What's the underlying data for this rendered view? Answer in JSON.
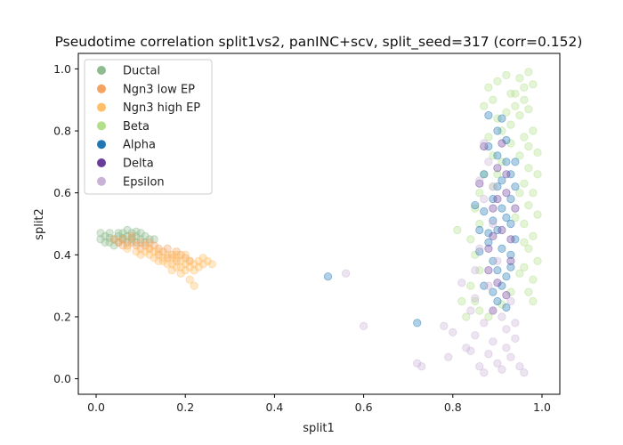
{
  "chart_data": {
    "type": "scatter",
    "title": "Pseudotime correlation split1vs2, panINC+scv, split_seed=317 (corr=0.152)",
    "xlabel": "split1",
    "ylabel": "split2",
    "xlim": [
      -0.04,
      1.04
    ],
    "ylim": [
      -0.05,
      1.05
    ],
    "xticks": [
      "0.0",
      "0.2",
      "0.4",
      "0.6",
      "0.8",
      "1.0"
    ],
    "yticks": [
      "0.0",
      "0.2",
      "0.4",
      "0.6",
      "0.8",
      "1.0"
    ],
    "legend_position": "top-left",
    "point_alpha": 0.35,
    "series": [
      {
        "name": "Ductal",
        "color": "#8fbc8f",
        "points": [
          [
            0.01,
            0.45
          ],
          [
            0.02,
            0.46
          ],
          [
            0.03,
            0.44
          ],
          [
            0.03,
            0.47
          ],
          [
            0.04,
            0.45
          ],
          [
            0.05,
            0.46
          ],
          [
            0.05,
            0.44
          ],
          [
            0.06,
            0.47
          ],
          [
            0.06,
            0.45
          ],
          [
            0.07,
            0.46
          ],
          [
            0.07,
            0.44
          ],
          [
            0.08,
            0.45
          ],
          [
            0.08,
            0.47
          ],
          [
            0.09,
            0.46
          ],
          [
            0.09,
            0.44
          ],
          [
            0.1,
            0.45
          ],
          [
            0.11,
            0.46
          ],
          [
            0.12,
            0.45
          ],
          [
            0.04,
            0.43
          ],
          [
            0.02,
            0.44
          ],
          [
            0.05,
            0.47
          ],
          [
            0.07,
            0.48
          ],
          [
            0.1,
            0.47
          ],
          [
            0.03,
            0.455
          ],
          [
            0.06,
            0.455
          ],
          [
            0.08,
            0.455
          ],
          [
            0.13,
            0.45
          ],
          [
            0.01,
            0.47
          ],
          [
            0.11,
            0.44
          ],
          [
            0.09,
            0.475
          ]
        ]
      },
      {
        "name": "Ngn3 low EP",
        "color": "#f4a460",
        "points": [
          [
            0.04,
            0.45
          ],
          [
            0.05,
            0.44
          ],
          [
            0.06,
            0.45
          ],
          [
            0.07,
            0.43
          ],
          [
            0.08,
            0.44
          ],
          [
            0.09,
            0.43
          ],
          [
            0.1,
            0.44
          ],
          [
            0.11,
            0.43
          ],
          [
            0.12,
            0.42
          ],
          [
            0.13,
            0.43
          ],
          [
            0.14,
            0.42
          ],
          [
            0.15,
            0.41
          ],
          [
            0.16,
            0.42
          ],
          [
            0.17,
            0.4
          ],
          [
            0.18,
            0.41
          ],
          [
            0.19,
            0.4
          ],
          [
            0.2,
            0.39
          ],
          [
            0.08,
            0.46
          ],
          [
            0.1,
            0.42
          ],
          [
            0.12,
            0.44
          ],
          [
            0.14,
            0.4
          ],
          [
            0.16,
            0.39
          ],
          [
            0.18,
            0.38
          ],
          [
            0.21,
            0.38
          ],
          [
            0.06,
            0.43
          ]
        ]
      },
      {
        "name": "Ngn3 high EP",
        "color": "#ffbf69",
        "points": [
          [
            0.07,
            0.42
          ],
          [
            0.09,
            0.41
          ],
          [
            0.1,
            0.4
          ],
          [
            0.11,
            0.41
          ],
          [
            0.12,
            0.4
          ],
          [
            0.13,
            0.39
          ],
          [
            0.14,
            0.41
          ],
          [
            0.15,
            0.39
          ],
          [
            0.15,
            0.38
          ],
          [
            0.16,
            0.4
          ],
          [
            0.16,
            0.37
          ],
          [
            0.17,
            0.39
          ],
          [
            0.17,
            0.37
          ],
          [
            0.18,
            0.39
          ],
          [
            0.18,
            0.36
          ],
          [
            0.19,
            0.38
          ],
          [
            0.19,
            0.36
          ],
          [
            0.2,
            0.37
          ],
          [
            0.2,
            0.35
          ],
          [
            0.21,
            0.38
          ],
          [
            0.21,
            0.36
          ],
          [
            0.22,
            0.37
          ],
          [
            0.22,
            0.35
          ],
          [
            0.23,
            0.38
          ],
          [
            0.23,
            0.36
          ],
          [
            0.24,
            0.37
          ],
          [
            0.25,
            0.38
          ],
          [
            0.26,
            0.37
          ],
          [
            0.21,
            0.32
          ],
          [
            0.22,
            0.3
          ],
          [
            0.12,
            0.42
          ],
          [
            0.14,
            0.38
          ],
          [
            0.19,
            0.34
          ],
          [
            0.2,
            0.4
          ],
          [
            0.17,
            0.35
          ],
          [
            0.24,
            0.39
          ],
          [
            0.13,
            0.41
          ],
          [
            0.18,
            0.4
          ]
        ]
      },
      {
        "name": "Beta",
        "color": "#b2df8a",
        "points": [
          [
            0.88,
            0.94
          ],
          [
            0.9,
            0.96
          ],
          [
            0.92,
            0.98
          ],
          [
            0.93,
            0.92
          ],
          [
            0.95,
            0.97
          ],
          [
            0.96,
            0.94
          ],
          [
            0.97,
            0.99
          ],
          [
            0.98,
            0.95
          ],
          [
            0.96,
            0.9
          ],
          [
            0.94,
            0.88
          ],
          [
            0.92,
            0.86
          ],
          [
            0.95,
            0.85
          ],
          [
            0.97,
            0.87
          ],
          [
            0.98,
            0.8
          ],
          [
            0.96,
            0.78
          ],
          [
            0.93,
            0.82
          ],
          [
            0.91,
            0.8
          ],
          [
            0.97,
            0.75
          ],
          [
            0.99,
            0.73
          ],
          [
            0.95,
            0.72
          ],
          [
            0.97,
            0.68
          ],
          [
            0.99,
            0.66
          ],
          [
            0.96,
            0.63
          ],
          [
            0.98,
            0.6
          ],
          [
            0.97,
            0.56
          ],
          [
            0.99,
            0.53
          ],
          [
            0.96,
            0.5
          ],
          [
            0.98,
            0.46
          ],
          [
            0.97,
            0.42
          ],
          [
            0.99,
            0.38
          ],
          [
            0.96,
            0.36
          ],
          [
            0.98,
            0.32
          ],
          [
            0.97,
            0.28
          ],
          [
            0.98,
            0.25
          ],
          [
            0.89,
            0.9
          ],
          [
            0.9,
            0.84
          ],
          [
            0.88,
            0.78
          ],
          [
            0.89,
            0.72
          ],
          [
            0.87,
            0.66
          ],
          [
            0.86,
            0.6
          ],
          [
            0.85,
            0.55
          ],
          [
            0.86,
            0.5
          ],
          [
            0.84,
            0.45
          ],
          [
            0.85,
            0.4
          ],
          [
            0.86,
            0.35
          ],
          [
            0.84,
            0.3
          ],
          [
            0.85,
            0.25
          ],
          [
            0.86,
            0.22
          ],
          [
            0.88,
            0.2
          ],
          [
            0.81,
            0.48
          ],
          [
            0.83,
            0.2
          ],
          [
            0.82,
            0.25
          ],
          [
            0.94,
            0.92
          ],
          [
            0.91,
            0.7
          ],
          [
            0.93,
            0.76
          ],
          [
            0.9,
            0.66
          ],
          [
            0.95,
            0.6
          ],
          [
            0.94,
            0.52
          ],
          [
            0.96,
            0.44
          ],
          [
            0.95,
            0.34
          ],
          [
            0.93,
            0.28
          ],
          [
            0.91,
            0.24
          ],
          [
            0.87,
            0.88
          ],
          [
            0.89,
            0.62
          ]
        ]
      },
      {
        "name": "Alpha",
        "color": "#1f78b4",
        "points": [
          [
            0.88,
            0.75
          ],
          [
            0.9,
            0.8
          ],
          [
            0.91,
            0.84
          ],
          [
            0.92,
            0.7
          ],
          [
            0.93,
            0.66
          ],
          [
            0.9,
            0.62
          ],
          [
            0.89,
            0.58
          ],
          [
            0.91,
            0.55
          ],
          [
            0.92,
            0.52
          ],
          [
            0.9,
            0.48
          ],
          [
            0.88,
            0.44
          ],
          [
            0.91,
            0.42
          ],
          [
            0.93,
            0.4
          ],
          [
            0.89,
            0.38
          ],
          [
            0.9,
            0.35
          ],
          [
            0.92,
            0.33
          ],
          [
            0.91,
            0.3
          ],
          [
            0.89,
            0.28
          ],
          [
            0.9,
            0.25
          ],
          [
            0.92,
            0.23
          ],
          [
            0.93,
            0.58
          ],
          [
            0.94,
            0.62
          ],
          [
            0.87,
            0.54
          ],
          [
            0.88,
            0.47
          ],
          [
            0.94,
            0.45
          ],
          [
            0.93,
            0.36
          ],
          [
            0.87,
            0.3
          ],
          [
            0.86,
            0.41
          ],
          [
            0.85,
            0.56
          ],
          [
            0.87,
            0.66
          ],
          [
            0.92,
            0.77
          ],
          [
            0.9,
            0.72
          ],
          [
            0.91,
            0.64
          ],
          [
            0.89,
            0.51
          ],
          [
            0.93,
            0.5
          ],
          [
            0.52,
            0.33
          ],
          [
            0.72,
            0.18
          ],
          [
            0.88,
            0.85
          ],
          [
            0.94,
            0.7
          ],
          [
            0.86,
            0.48
          ]
        ]
      },
      {
        "name": "Delta",
        "color": "#6a3d9a",
        "points": [
          [
            0.87,
            0.75
          ],
          [
            0.9,
            0.68
          ],
          [
            0.92,
            0.6
          ],
          [
            0.89,
            0.55
          ],
          [
            0.91,
            0.48
          ],
          [
            0.88,
            0.42
          ],
          [
            0.93,
            0.38
          ],
          [
            0.9,
            0.31
          ],
          [
            0.92,
            0.27
          ],
          [
            0.89,
            0.22
          ],
          [
            0.94,
            0.55
          ],
          [
            0.86,
            0.63
          ],
          [
            0.91,
            0.76
          ],
          [
            0.88,
            0.35
          ],
          [
            0.93,
            0.45
          ],
          [
            0.9,
            0.58
          ],
          [
            0.92,
            0.66
          ],
          [
            0.89,
            0.46
          ]
        ]
      },
      {
        "name": "Epsilon",
        "color": "#cab2d6",
        "points": [
          [
            0.56,
            0.34
          ],
          [
            0.6,
            0.17
          ],
          [
            0.72,
            0.05
          ],
          [
            0.73,
            0.04
          ],
          [
            0.78,
            0.17
          ],
          [
            0.79,
            0.07
          ],
          [
            0.8,
            0.15
          ],
          [
            0.82,
            0.31
          ],
          [
            0.83,
            0.1
          ],
          [
            0.84,
            0.09
          ],
          [
            0.85,
            0.14
          ],
          [
            0.86,
            0.04
          ],
          [
            0.87,
            0.02
          ],
          [
            0.88,
            0.08
          ],
          [
            0.89,
            0.12
          ],
          [
            0.9,
            0.05
          ],
          [
            0.91,
            0.03
          ],
          [
            0.92,
            0.1
          ],
          [
            0.93,
            0.07
          ],
          [
            0.94,
            0.13
          ],
          [
            0.95,
            0.04
          ],
          [
            0.96,
            0.02
          ],
          [
            0.87,
            0.18
          ],
          [
            0.89,
            0.22
          ],
          [
            0.91,
            0.2
          ],
          [
            0.85,
            0.26
          ],
          [
            0.88,
            0.3
          ],
          [
            0.9,
            0.38
          ],
          [
            0.86,
            0.42
          ],
          [
            0.89,
            0.5
          ],
          [
            0.87,
            0.58
          ],
          [
            0.86,
            0.64
          ],
          [
            0.88,
            0.7
          ],
          [
            0.87,
            0.76
          ],
          [
            0.89,
            0.62
          ],
          [
            0.92,
            0.16
          ],
          [
            0.84,
            0.22
          ],
          [
            0.94,
            0.18
          ],
          [
            0.85,
            0.35
          ],
          [
            0.93,
            0.25
          ]
        ]
      }
    ]
  }
}
